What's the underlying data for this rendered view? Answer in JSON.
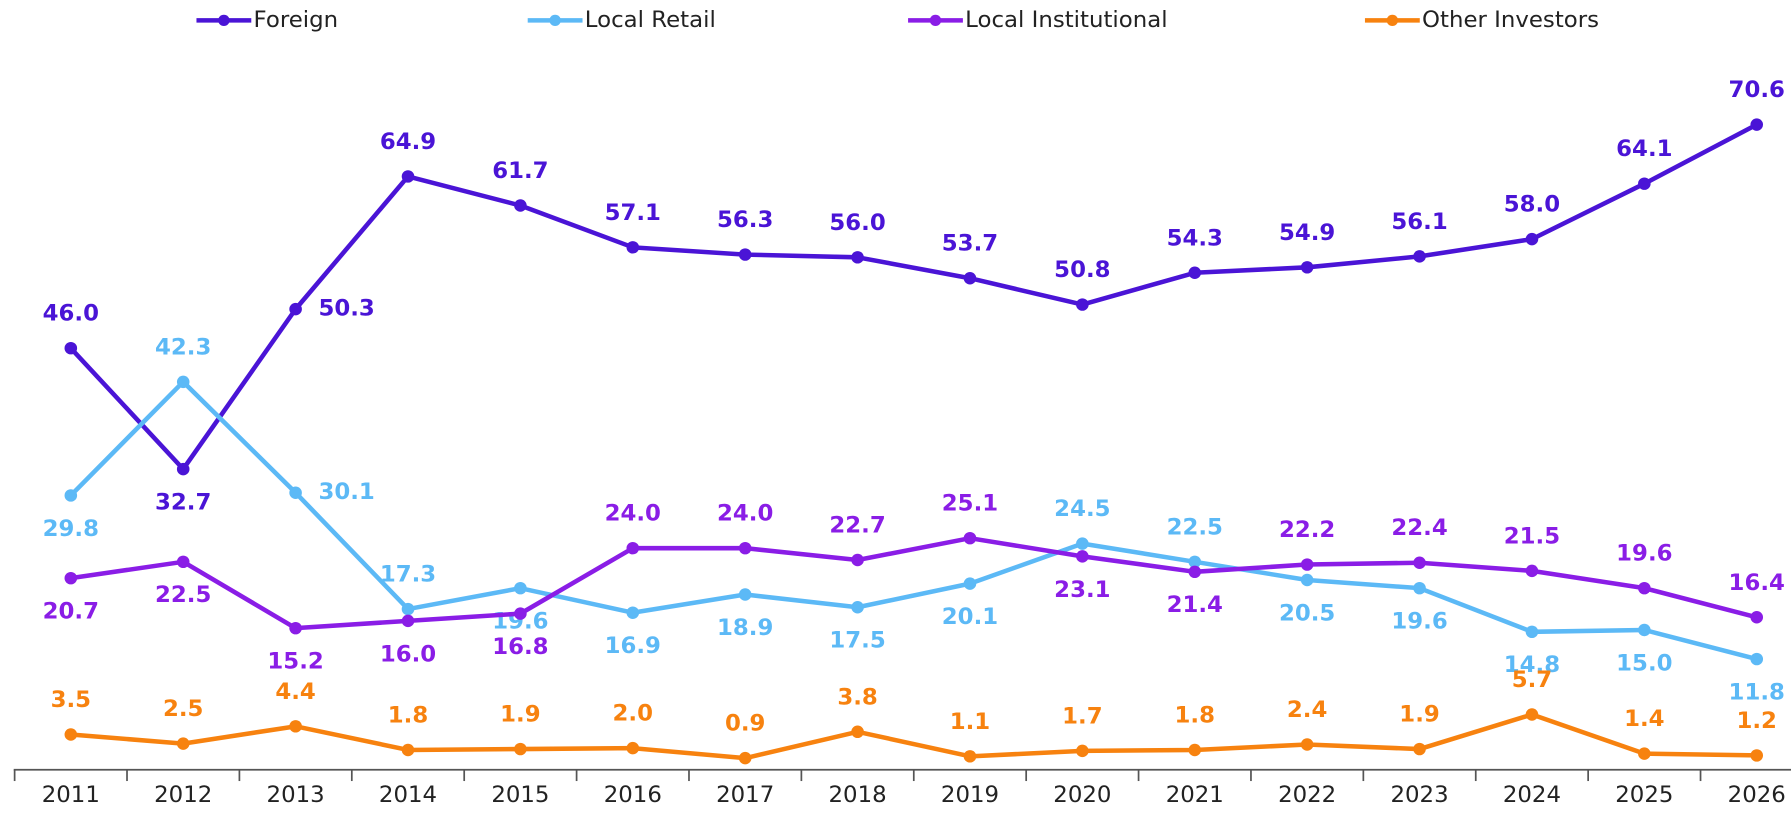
{
  "chart_data": {
    "type": "line",
    "categories": [
      "2011",
      "2012",
      "2013",
      "2014",
      "2015",
      "2016",
      "2017",
      "2018",
      "2019",
      "2020",
      "2021",
      "2022",
      "2023",
      "2024",
      "2025",
      "2026"
    ],
    "legend": "top",
    "series": [
      {
        "name": "Foreign",
        "color": "#4a14d6",
        "values": [
          46.0,
          32.7,
          50.3,
          64.9,
          61.7,
          57.1,
          56.3,
          56.0,
          53.7,
          50.8,
          54.3,
          54.9,
          56.1,
          58.0,
          64.1,
          70.6
        ],
        "value_labels": [
          "46.0",
          "32.7",
          "50.3",
          "64.9",
          "61.7",
          "57.1",
          "56.3",
          "56.0",
          "53.7",
          "50.8",
          "54.3",
          "54.9",
          "56.1",
          "58.0",
          "64.1",
          "70.6"
        ]
      },
      {
        "name": "Local Retail",
        "color": "#5cb9f6",
        "values": [
          29.8,
          42.3,
          30.1,
          17.3,
          19.6,
          16.9,
          18.9,
          17.5,
          20.1,
          24.5,
          22.5,
          20.5,
          19.6,
          14.8,
          15.0,
          11.8
        ],
        "value_labels": [
          "29.8",
          "42.3",
          "30.1",
          "17.3",
          "19.6",
          "16.9",
          "18.9",
          "17.5",
          "20.1",
          "24.5",
          "22.5",
          "20.5",
          "19.6",
          "14.8",
          "15.0",
          "11.8"
        ]
      },
      {
        "name": "Local Institutional",
        "color": "#8a1de6",
        "values": [
          20.7,
          22.5,
          15.2,
          16.0,
          16.8,
          24.0,
          24.0,
          22.7,
          25.1,
          23.1,
          21.4,
          22.2,
          22.4,
          21.5,
          19.6,
          16.4
        ],
        "value_labels": [
          "20.7",
          "22.5",
          "15.2",
          "16.0",
          "16.8",
          "24.0",
          "24.0",
          "22.7",
          "25.1",
          "23.1",
          "21.4",
          "22.2",
          "22.4",
          "21.5",
          "19.6",
          "16.4"
        ]
      },
      {
        "name": "Other Investors",
        "color": "#f7820f",
        "values": [
          3.5,
          2.5,
          4.4,
          1.8,
          1.9,
          2.0,
          0.9,
          3.8,
          1.1,
          1.7,
          1.8,
          2.4,
          1.9,
          5.7,
          1.4,
          1.2
        ],
        "value_labels": [
          "3.5",
          "2.5",
          "4.4",
          "1.8",
          "1.9",
          "2.0",
          "0.9",
          "3.8",
          "1.1",
          "1.7",
          "1.8",
          "2.4",
          "1.9",
          "5.7",
          "1.4",
          "1.2"
        ]
      }
    ]
  }
}
